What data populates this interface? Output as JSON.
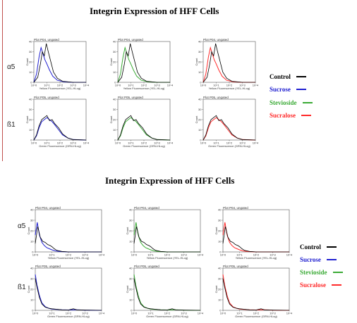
{
  "colors": {
    "control": "#000000",
    "sucrose": "#1f1fd0",
    "stevioside": "#3aaa35",
    "sucralose": "#ff2a2a",
    "divider": "#c0504d"
  },
  "figures": [
    {
      "title": "Integrin Expression of HFF Cells",
      "rows": [
        {
          "label": "α5",
          "plot_title": "Plot P04, ungated",
          "xlabel": "Yellow Fluorescence (YEL-HLog)"
        },
        {
          "label": "ß1",
          "plot_title": "Plot P05, ungated",
          "xlabel": "Green Fluorescence (GRN-HLog)"
        }
      ],
      "legend": [
        "Control",
        "Sucrose",
        "Stevioside",
        "Sucralose"
      ]
    },
    {
      "title": "Integrin Expression of HFF Cells",
      "rows": [
        {
          "label": "α5",
          "plot_title": "Plot P04, ungated",
          "xlabel": "Yellow Fluorescence (YEL-HLog)"
        },
        {
          "label": "ß1",
          "plot_title": "Plot P05, ungated",
          "xlabel": "Green Fluorescence (GRN-HLog)"
        }
      ],
      "legend": [
        "Control",
        "Sucrose",
        "Stevioside",
        "Sucralose"
      ]
    }
  ],
  "chart_data": [
    {
      "type": "area",
      "title": "Integrin Expression of HFF Cells",
      "ylabel": "Count",
      "xscale": "log",
      "x_ticks": [
        "10^0",
        "10^1",
        "10^2",
        "10^3",
        "10^4"
      ],
      "xlim": [
        0,
        4
      ],
      "ylim": [
        0,
        40
      ],
      "y_ticks": [
        "0",
        "10",
        "20",
        "30",
        "40"
      ],
      "rows": [
        "α5",
        "ß1"
      ],
      "columns": [
        "Sucrose",
        "Stevioside",
        "Sucralose"
      ],
      "series_curves": {
        "a5_control": [
          [
            0,
            0
          ],
          [
            0.3,
            5
          ],
          [
            0.5,
            18
          ],
          [
            0.65,
            30
          ],
          [
            0.8,
            26
          ],
          [
            0.95,
            38
          ],
          [
            1.1,
            30
          ],
          [
            1.3,
            20
          ],
          [
            1.5,
            10
          ],
          [
            1.8,
            4
          ],
          [
            2.2,
            1
          ],
          [
            2.6,
            0.5
          ],
          [
            3,
            0
          ],
          [
            4,
            0
          ]
        ],
        "a5_treated": [
          [
            0,
            0
          ],
          [
            0.2,
            8
          ],
          [
            0.4,
            25
          ],
          [
            0.55,
            34
          ],
          [
            0.7,
            28
          ],
          [
            0.85,
            22
          ],
          [
            1.0,
            18
          ],
          [
            1.2,
            12
          ],
          [
            1.45,
            6
          ],
          [
            1.8,
            2
          ],
          [
            2.3,
            0.5
          ],
          [
            3,
            0
          ],
          [
            4,
            0
          ]
        ],
        "b1_control": [
          [
            0,
            0
          ],
          [
            0.2,
            5
          ],
          [
            0.4,
            14
          ],
          [
            0.6,
            20
          ],
          [
            0.8,
            22
          ],
          [
            1.0,
            24
          ],
          [
            1.2,
            19
          ],
          [
            1.4,
            20
          ],
          [
            1.6,
            16
          ],
          [
            1.9,
            12
          ],
          [
            2.2,
            6
          ],
          [
            2.6,
            2
          ],
          [
            3,
            0.5
          ],
          [
            4,
            0
          ]
        ],
        "b1_treated": [
          [
            0,
            0
          ],
          [
            0.2,
            4
          ],
          [
            0.4,
            12
          ],
          [
            0.6,
            18
          ],
          [
            0.8,
            20
          ],
          [
            1.0,
            22
          ],
          [
            1.2,
            20
          ],
          [
            1.4,
            18
          ],
          [
            1.6,
            15
          ],
          [
            1.9,
            10
          ],
          [
            2.2,
            5
          ],
          [
            2.6,
            2
          ],
          [
            3,
            0.5
          ],
          [
            4,
            0
          ]
        ]
      }
    },
    {
      "type": "area",
      "title": "Integrin Expression of HFF Cells",
      "ylabel": "Count",
      "xscale": "log",
      "x_ticks": [
        "10^0",
        "10^1",
        "10^2",
        "10^3",
        "10^4"
      ],
      "xlim": [
        0,
        4
      ],
      "ylim": [
        0,
        40
      ],
      "y_ticks": [
        "0",
        "10",
        "20",
        "30",
        "40"
      ],
      "rows": [
        "α5",
        "ß1"
      ],
      "columns": [
        "Sucrose",
        "Stevioside",
        "Sucralose"
      ],
      "series_curves": {
        "a5_control": [
          [
            0,
            8
          ],
          [
            0.15,
            24
          ],
          [
            0.3,
            14
          ],
          [
            0.45,
            10
          ],
          [
            0.6,
            9
          ],
          [
            0.75,
            7
          ],
          [
            0.9,
            6
          ],
          [
            1.0,
            5
          ],
          [
            1.15,
            3
          ],
          [
            1.3,
            1.5
          ],
          [
            1.6,
            0.5
          ],
          [
            2,
            0
          ],
          [
            4,
            0
          ]
        ],
        "a5_treated": [
          [
            0,
            16
          ],
          [
            0.12,
            28
          ],
          [
            0.25,
            16
          ],
          [
            0.4,
            9
          ],
          [
            0.55,
            6
          ],
          [
            0.7,
            4
          ],
          [
            0.85,
            3
          ],
          [
            1.0,
            2
          ],
          [
            1.2,
            1
          ],
          [
            1.5,
            0.3
          ],
          [
            2,
            0
          ],
          [
            4,
            0
          ]
        ],
        "b1_control": [
          [
            0,
            30
          ],
          [
            0.1,
            22
          ],
          [
            0.25,
            12
          ],
          [
            0.4,
            6
          ],
          [
            0.6,
            3
          ],
          [
            0.8,
            2
          ],
          [
            1.0,
            1.5
          ],
          [
            1.3,
            1
          ],
          [
            1.6,
            0.5
          ],
          [
            2.0,
            0.3
          ],
          [
            2.3,
            1.5
          ],
          [
            2.5,
            0.5
          ],
          [
            3,
            0.2
          ],
          [
            4,
            0
          ]
        ],
        "b1_treated": [
          [
            0,
            34
          ],
          [
            0.1,
            24
          ],
          [
            0.25,
            14
          ],
          [
            0.4,
            7
          ],
          [
            0.6,
            3.5
          ],
          [
            0.8,
            2
          ],
          [
            1.0,
            1.2
          ],
          [
            1.3,
            0.8
          ],
          [
            1.6,
            0.5
          ],
          [
            2.0,
            0.3
          ],
          [
            2.4,
            0.6
          ],
          [
            3,
            0.2
          ],
          [
            4,
            0
          ]
        ]
      }
    }
  ]
}
